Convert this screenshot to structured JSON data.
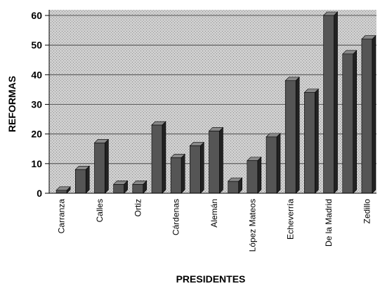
{
  "chart_data": {
    "type": "bar",
    "xlabel": "PRESIDENTES",
    "ylabel": "REFORMAS",
    "categories": [
      "Carranza",
      null,
      "Calles",
      null,
      "Ortiz",
      null,
      "Cárdenas",
      null,
      "Alemán",
      null,
      "López Mateos",
      null,
      "Echeverría",
      null,
      "De la Madrid",
      null,
      "Zedillo"
    ],
    "values": [
      1,
      8,
      17,
      3,
      3,
      23,
      12,
      16,
      21,
      4,
      11,
      19,
      38,
      34,
      60,
      47,
      52
    ],
    "color": "#555555",
    "ylim": [
      0,
      60
    ],
    "yticks": [
      0,
      10,
      20,
      30,
      40,
      50,
      60
    ],
    "grid": true
  }
}
